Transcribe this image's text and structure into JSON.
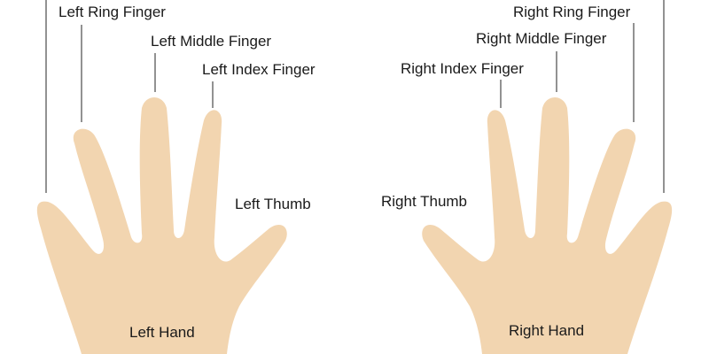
{
  "colors": {
    "skin": "#f2d5b0",
    "leader_line": "#4a4a4a",
    "text": "#1a1a1a",
    "background": "#ffffff"
  },
  "left": {
    "ring": "Left Ring Finger",
    "middle": "Left Middle Finger",
    "index": "Left Index Finger",
    "thumb": "Left Thumb",
    "hand": "Left Hand"
  },
  "right": {
    "ring": "Right Ring Finger",
    "middle": "Right Middle Finger",
    "index": "Right Index Finger",
    "thumb": "Right Thumb",
    "hand": "Right Hand"
  }
}
